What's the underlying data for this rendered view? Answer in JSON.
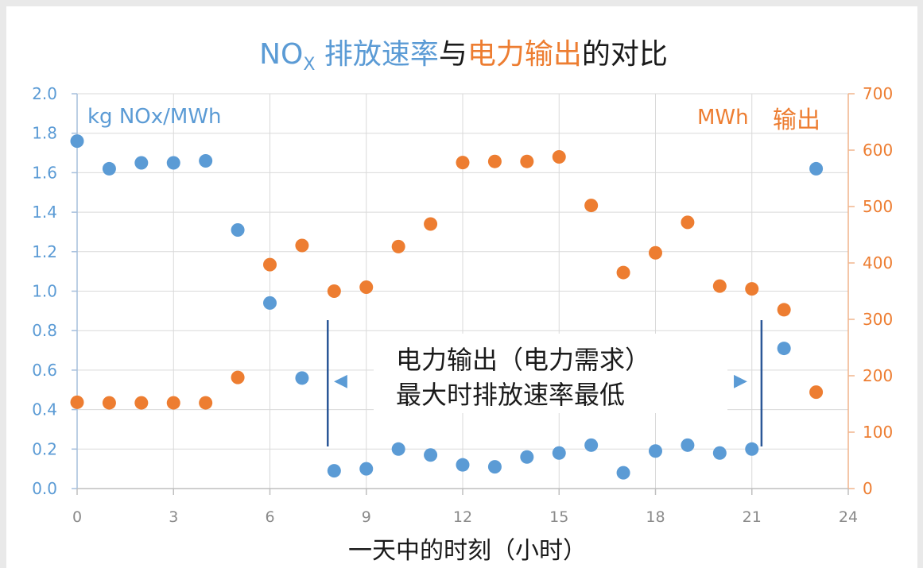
{
  "chart_data": {
    "type": "scatter",
    "title": {
      "part1": "NO",
      "part1_sub": "X",
      "part2": " 排放速率",
      "part3": "与",
      "part4": "电力输出",
      "part5": "的对比"
    },
    "xlabel": "一天中的时刻（小时）",
    "xlim": [
      0,
      24
    ],
    "x_ticks": [
      "0",
      "3",
      "6",
      "9",
      "12",
      "15",
      "18",
      "21",
      "24"
    ],
    "y_left": {
      "label": "kg NOx/MWh",
      "ylim": [
        0,
        2.0
      ],
      "ticks": [
        "0.0",
        "0.2",
        "0.4",
        "0.6",
        "0.8",
        "1.0",
        "1.2",
        "1.4",
        "1.6",
        "1.8",
        "2.0"
      ]
    },
    "y_right": {
      "label_unit": "MWh",
      "label_text": "输出",
      "ylim": [
        0,
        700
      ],
      "ticks": [
        "0",
        "100",
        "200",
        "300",
        "400",
        "500",
        "600",
        "700"
      ]
    },
    "grid": true,
    "series": [
      {
        "name": "NOx 排放速率",
        "color": "#5b9bd5",
        "axis": "left",
        "x": [
          0,
          1,
          2,
          3,
          4,
          5,
          6,
          7,
          8,
          9,
          10,
          11,
          12,
          13,
          14,
          15,
          16,
          17,
          18,
          19,
          20,
          21,
          22,
          23
        ],
        "values": [
          1.76,
          1.62,
          1.65,
          1.65,
          1.66,
          1.31,
          0.94,
          0.56,
          0.09,
          0.1,
          0.2,
          0.17,
          0.12,
          0.11,
          0.16,
          0.18,
          0.22,
          0.08,
          0.19,
          0.22,
          0.18,
          0.2,
          0.71,
          1.62
        ]
      },
      {
        "name": "电力输出",
        "color": "#ed7d31",
        "axis": "right",
        "x": [
          0,
          1,
          2,
          3,
          4,
          5,
          6,
          7,
          8,
          9,
          10,
          11,
          12,
          13,
          14,
          15,
          16,
          17,
          18,
          19,
          20,
          21,
          22,
          23
        ],
        "values": [
          153,
          152,
          152,
          152,
          152,
          197,
          397,
          431,
          350,
          357,
          429,
          469,
          578,
          580,
          580,
          588,
          502,
          383,
          418,
          472,
          359,
          354,
          317,
          171
        ]
      }
    ],
    "annotation": {
      "line1": "电力输出（电力需求）",
      "line2": "最大时排放速率最低",
      "arrow_left": "◀",
      "arrow_right": "▶",
      "range_hours": [
        7.8,
        21.3
      ]
    }
  }
}
